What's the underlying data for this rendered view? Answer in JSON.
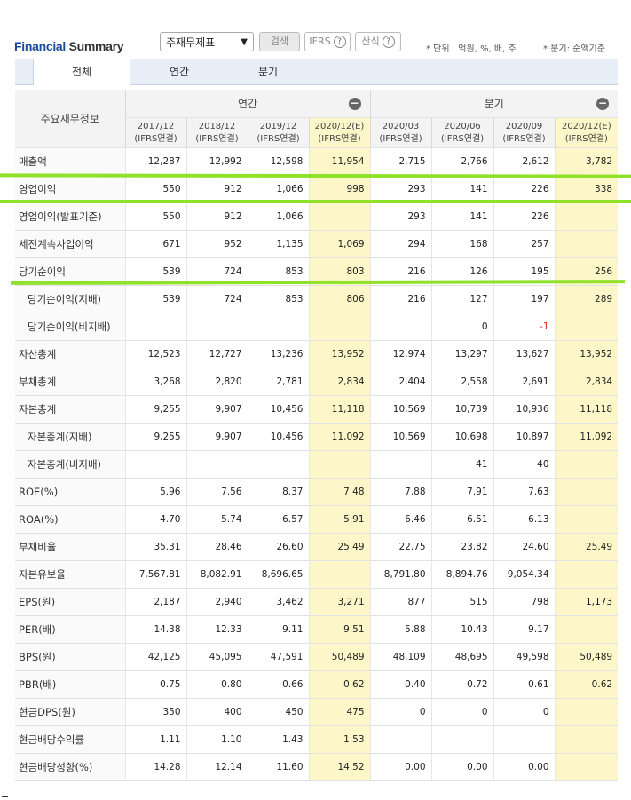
{
  "header": {
    "title_main": "Financial",
    "title_sub": " Summary",
    "select_value": "주재무제표",
    "search_label": "검색",
    "ifrs_label": "IFRS",
    "calc_label": "산식",
    "help_glyph": "?",
    "unit_note": "* 단위 : 억원, %, 배, 주",
    "basis_note": "* 분기: 순액기준"
  },
  "tabs": [
    {
      "label": "전체"
    },
    {
      "label": "연간"
    },
    {
      "label": "분기"
    }
  ],
  "table": {
    "corner_label": "주요재무정보",
    "group_annual": "연간",
    "group_quarter": "분기",
    "collapse_glyph": "−",
    "columns": [
      {
        "period": "2017/12",
        "basis": "(IFRS연결)"
      },
      {
        "period": "2018/12",
        "basis": "(IFRS연결)"
      },
      {
        "period": "2019/12",
        "basis": "(IFRS연결)"
      },
      {
        "period": "2020/12(E)",
        "basis": "(IFRS연결)"
      },
      {
        "period": "2020/03",
        "basis": "(IFRS연결)"
      },
      {
        "period": "2020/06",
        "basis": "(IFRS연결)"
      },
      {
        "period": "2020/09",
        "basis": "(IFRS연결)"
      },
      {
        "period": "2020/12(E)",
        "basis": "(IFRS연결)"
      }
    ],
    "rows": [
      {
        "label": "매출액",
        "indent": false,
        "values": [
          "12,287",
          "12,992",
          "12,598",
          "11,954",
          "2,715",
          "2,766",
          "2,612",
          "3,782"
        ]
      },
      {
        "label": "영업이익",
        "indent": false,
        "values": [
          "550",
          "912",
          "1,066",
          "998",
          "293",
          "141",
          "226",
          "338"
        ]
      },
      {
        "label": "영업이익(발표기준)",
        "indent": false,
        "values": [
          "550",
          "912",
          "1,066",
          "",
          "293",
          "141",
          "226",
          ""
        ]
      },
      {
        "label": "세전계속사업이익",
        "indent": false,
        "values": [
          "671",
          "952",
          "1,135",
          "1,069",
          "294",
          "168",
          "257",
          ""
        ]
      },
      {
        "label": "당기순이익",
        "indent": false,
        "values": [
          "539",
          "724",
          "853",
          "803",
          "216",
          "126",
          "195",
          "256"
        ]
      },
      {
        "label": "당기순이익(지배)",
        "indent": true,
        "values": [
          "539",
          "724",
          "853",
          "806",
          "216",
          "127",
          "197",
          "289"
        ]
      },
      {
        "label": "당기순이익(비지배)",
        "indent": true,
        "values": [
          "",
          "",
          "",
          "",
          "",
          "0",
          "-1",
          ""
        ]
      },
      {
        "label": "자산총계",
        "indent": false,
        "values": [
          "12,523",
          "12,727",
          "13,236",
          "13,952",
          "12,974",
          "13,297",
          "13,627",
          "13,952"
        ]
      },
      {
        "label": "부채총계",
        "indent": false,
        "values": [
          "3,268",
          "2,820",
          "2,781",
          "2,834",
          "2,404",
          "2,558",
          "2,691",
          "2,834"
        ]
      },
      {
        "label": "자본총계",
        "indent": false,
        "values": [
          "9,255",
          "9,907",
          "10,456",
          "11,118",
          "10,569",
          "10,739",
          "10,936",
          "11,118"
        ]
      },
      {
        "label": "자본총계(지배)",
        "indent": true,
        "values": [
          "9,255",
          "9,907",
          "10,456",
          "11,092",
          "10,569",
          "10,698",
          "10,897",
          "11,092"
        ]
      },
      {
        "label": "자본총계(비지배)",
        "indent": true,
        "values": [
          "",
          "",
          "",
          "",
          "",
          "41",
          "40",
          ""
        ]
      },
      {
        "label": "ROE(%)",
        "indent": false,
        "values": [
          "5.96",
          "7.56",
          "8.37",
          "7.48",
          "7.88",
          "7.91",
          "7.63",
          ""
        ]
      },
      {
        "label": "ROA(%)",
        "indent": false,
        "values": [
          "4.70",
          "5.74",
          "6.57",
          "5.91",
          "6.46",
          "6.51",
          "6.13",
          ""
        ]
      },
      {
        "label": "부채비율",
        "indent": false,
        "values": [
          "35.31",
          "28.46",
          "26.60",
          "25.49",
          "22.75",
          "23.82",
          "24.60",
          "25.49"
        ]
      },
      {
        "label": "자본유보율",
        "indent": false,
        "values": [
          "7,567.81",
          "8,082.91",
          "8,696.65",
          "",
          "8,791.80",
          "8,894.76",
          "9,054.34",
          ""
        ]
      },
      {
        "label": "EPS(원)",
        "indent": false,
        "values": [
          "2,187",
          "2,940",
          "3,462",
          "3,271",
          "877",
          "515",
          "798",
          "1,173"
        ]
      },
      {
        "label": "PER(배)",
        "indent": false,
        "values": [
          "14.38",
          "12.33",
          "9.11",
          "9.51",
          "5.88",
          "10.43",
          "9.17",
          ""
        ]
      },
      {
        "label": "BPS(원)",
        "indent": false,
        "values": [
          "42,125",
          "45,095",
          "47,591",
          "50,489",
          "48,109",
          "48,695",
          "49,598",
          "50,489"
        ]
      },
      {
        "label": "PBR(배)",
        "indent": false,
        "values": [
          "0.75",
          "0.80",
          "0.66",
          "0.62",
          "0.40",
          "0.72",
          "0.61",
          "0.62"
        ]
      },
      {
        "label": "현금DPS(원)",
        "indent": false,
        "values": [
          "350",
          "400",
          "450",
          "475",
          "0",
          "0",
          "0",
          ""
        ]
      },
      {
        "label": "현금배당수익률",
        "indent": false,
        "values": [
          "1.11",
          "1.10",
          "1.43",
          "1.53",
          "",
          "",
          "",
          ""
        ]
      },
      {
        "label": "현금배당성향(%)",
        "indent": false,
        "values": [
          "14.28",
          "12.14",
          "11.60",
          "14.52",
          "0.00",
          "0.00",
          "0.00",
          ""
        ]
      }
    ]
  }
}
